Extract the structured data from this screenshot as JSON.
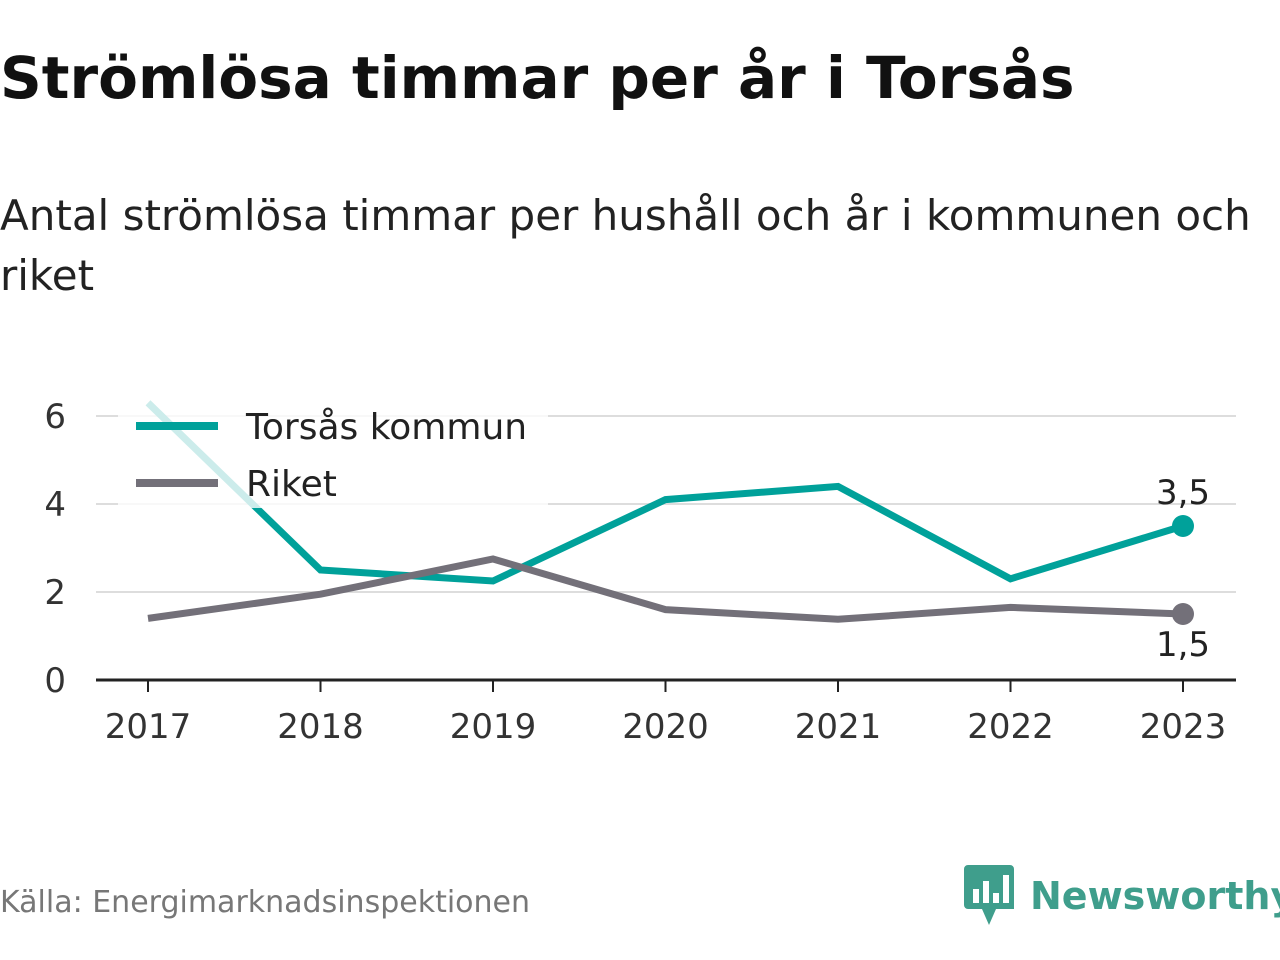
{
  "header": {
    "title": "Strömlösa timmar per år i Torsås",
    "subtitle": "Antal strömlösa timmar per hushåll och år i kommunen och riket"
  },
  "footer": {
    "source": "Källa: Energimarknadsinspektionen",
    "brand": "Newsworthy",
    "brand_icon": "newsworthy-logo-icon"
  },
  "colors": {
    "torsas": "#00a19a",
    "riket": "#737079",
    "brand": "#3f9e8c",
    "grid": "#dddddd",
    "axis": "#222222"
  },
  "chart_data": {
    "type": "line",
    "title": "Strömlösa timmar per år i Torsås",
    "subtitle": "Antal strömlösa timmar per hushåll och år i kommunen och riket",
    "xlabel": "",
    "ylabel": "",
    "x": [
      "2017",
      "2018",
      "2019",
      "2020",
      "2021",
      "2022",
      "2023"
    ],
    "y_ticks": [
      "0",
      "2",
      "4",
      "6"
    ],
    "ylim": [
      0,
      6.4
    ],
    "grid": true,
    "legend_position": "top-left",
    "series": [
      {
        "name": "Torsås kommun",
        "color": "#00a19a",
        "values": [
          6.3,
          2.5,
          2.25,
          4.1,
          4.4,
          2.3,
          3.5
        ],
        "end_label": "3,5"
      },
      {
        "name": "Riket",
        "color": "#737079",
        "values": [
          1.4,
          1.95,
          2.75,
          1.6,
          1.38,
          1.65,
          1.5
        ],
        "end_label": "1,5"
      }
    ]
  }
}
